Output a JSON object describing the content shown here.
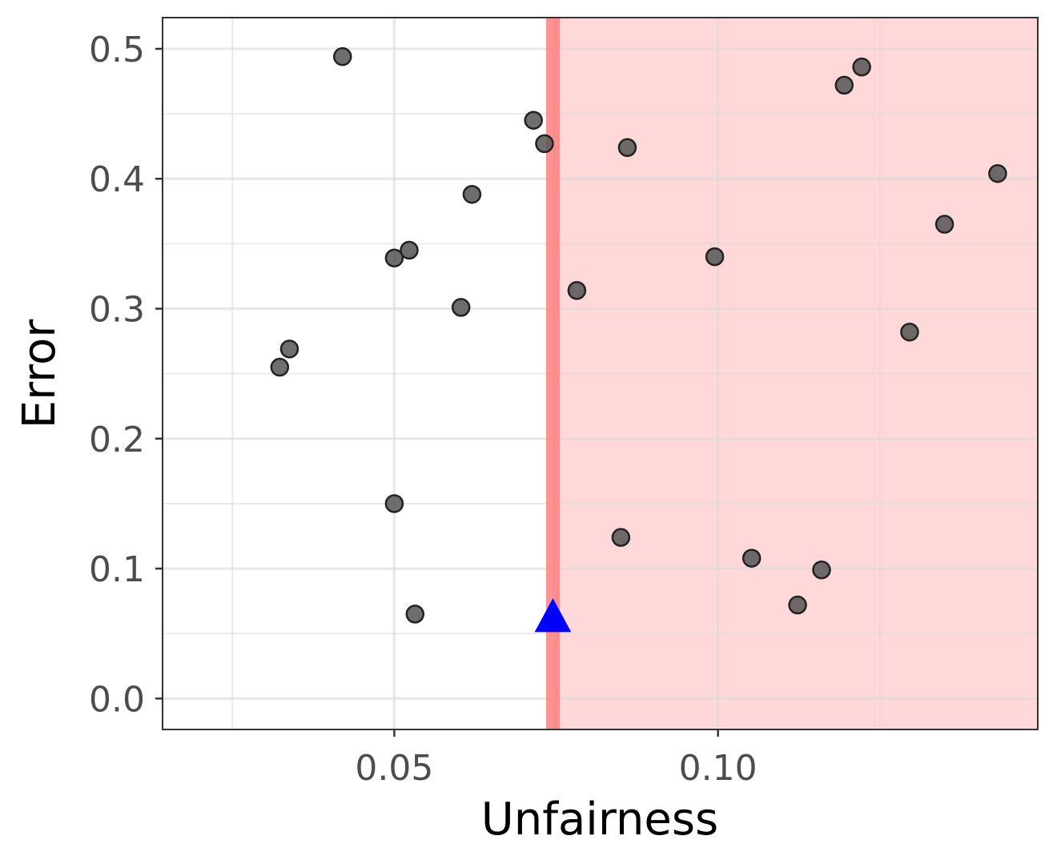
{
  "chart_data": {
    "type": "scatter",
    "xlabel": "Unfairness",
    "ylabel": "Error",
    "xlim": [
      0.0142,
      0.1494
    ],
    "ylim": [
      -0.0238,
      0.524
    ],
    "x_ticks": [
      0.05,
      0.1
    ],
    "x_tick_labels": [
      "0.05",
      "0.10"
    ],
    "y_ticks": [
      0.0,
      0.1,
      0.2,
      0.3,
      0.4,
      0.5
    ],
    "y_tick_labels": [
      "0.0",
      "0.1",
      "0.2",
      "0.3",
      "0.4",
      "0.5"
    ],
    "grid": true,
    "threshold": {
      "x": 0.0745,
      "line_color": "#ff7f7f",
      "shade_color": "#ffd8d9"
    },
    "points": [
      {
        "x": 0.042,
        "y": 0.494
      },
      {
        "x": 0.0715,
        "y": 0.445
      },
      {
        "x": 0.0732,
        "y": 0.427
      },
      {
        "x": 0.086,
        "y": 0.424
      },
      {
        "x": 0.1195,
        "y": 0.472
      },
      {
        "x": 0.1222,
        "y": 0.486
      },
      {
        "x": 0.1432,
        "y": 0.404
      },
      {
        "x": 0.062,
        "y": 0.388
      },
      {
        "x": 0.135,
        "y": 0.365
      },
      {
        "x": 0.0523,
        "y": 0.345
      },
      {
        "x": 0.05,
        "y": 0.339
      },
      {
        "x": 0.0995,
        "y": 0.34
      },
      {
        "x": 0.0782,
        "y": 0.314
      },
      {
        "x": 0.0603,
        "y": 0.301
      },
      {
        "x": 0.1296,
        "y": 0.282
      },
      {
        "x": 0.0338,
        "y": 0.269
      },
      {
        "x": 0.0323,
        "y": 0.255
      },
      {
        "x": 0.05,
        "y": 0.15
      },
      {
        "x": 0.085,
        "y": 0.124
      },
      {
        "x": 0.1052,
        "y": 0.108
      },
      {
        "x": 0.116,
        "y": 0.099
      },
      {
        "x": 0.1123,
        "y": 0.072
      },
      {
        "x": 0.0532,
        "y": 0.065
      }
    ],
    "highlight": {
      "x": 0.0745,
      "y": 0.063,
      "marker": "triangle",
      "color": "#0000ff"
    },
    "point_color": "#555555"
  }
}
